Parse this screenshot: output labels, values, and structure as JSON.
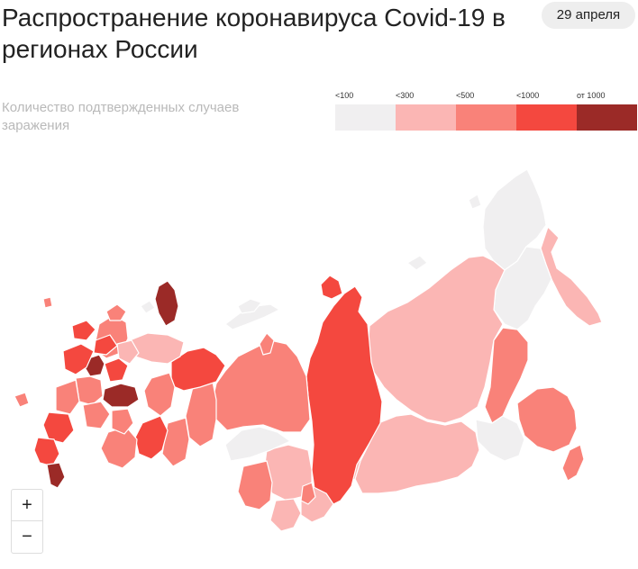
{
  "header": {
    "title": "Распространение коронавируса Covid-19 в регионах России",
    "date": "29 апреля"
  },
  "subtitle": "Количество подтвержденных случаев заражения",
  "legend": {
    "items": [
      {
        "label": "<100",
        "color": "#f0eff0"
      },
      {
        "label": "<300",
        "color": "#fbb6b4"
      },
      {
        "label": "<500",
        "color": "#f98279"
      },
      {
        "label": "<1000",
        "color": "#f4483f"
      },
      {
        "label": "от 1000",
        "color": "#9b2a27"
      }
    ]
  },
  "map": {
    "background_land": "#f0eff0",
    "border_color": "#ffffff"
  },
  "zoom": {
    "plus": "+",
    "minus": "−"
  }
}
